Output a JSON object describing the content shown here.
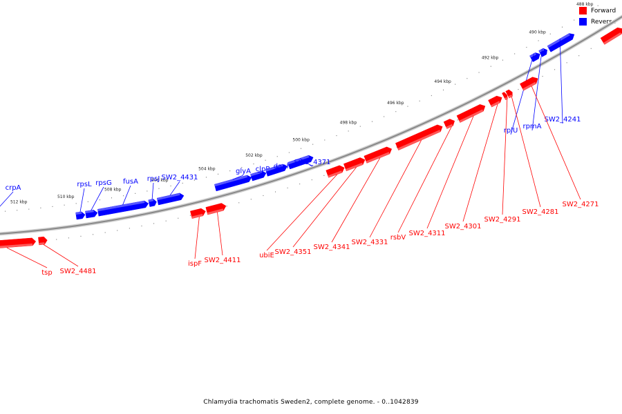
{
  "legend": {
    "forward_label": "Forward",
    "reverse_label": "Reverse",
    "forward_color": "#ff0000",
    "reverse_color": "#0000ff"
  },
  "footer": {
    "caption": "Chlamydia trachomatis Sweden2, complete genome. - 0..1042839"
  },
  "colors": {
    "forward": "#ff0000",
    "reverse": "#0000ff",
    "backbone": "#888888"
  },
  "axis": {
    "unit": "kbp",
    "range_kbp": [
      486.6,
      513.8
    ],
    "ticks": [
      {
        "kbp": 512,
        "label": "512 kbp"
      },
      {
        "kbp": 510,
        "label": "510 kbp"
      },
      {
        "kbp": 508,
        "label": "508 kbp"
      },
      {
        "kbp": 506,
        "label": "506 kbp"
      },
      {
        "kbp": 504,
        "label": "504 kbp"
      },
      {
        "kbp": 502,
        "label": "502 kbp"
      },
      {
        "kbp": 500,
        "label": "500 kbp"
      },
      {
        "kbp": 498,
        "label": "498 kbp"
      },
      {
        "kbp": 496,
        "label": "496 kbp"
      },
      {
        "kbp": 494,
        "label": "494 kbp"
      },
      {
        "kbp": 492,
        "label": "492 kbp"
      },
      {
        "kbp": 490,
        "label": "490 kbp"
      },
      {
        "kbp": 488,
        "label": "488 kbp"
      }
    ]
  },
  "genes": {
    "reverse": [
      {
        "start": 513.67,
        "end": 513.2,
        "label": "crpA"
      },
      {
        "start": 509.67,
        "end": 509.3,
        "label": "rpsL"
      },
      {
        "start": 509.27,
        "end": 508.78,
        "label": "rpsG"
      },
      {
        "start": 508.75,
        "end": 506.65,
        "label": "fusA"
      },
      {
        "start": 506.62,
        "end": 506.31,
        "label": "rpsJ"
      },
      {
        "start": 506.26,
        "end": 505.17,
        "label": "SW2_4431"
      },
      {
        "start": 503.85,
        "end": 502.34,
        "label": "glyA"
      },
      {
        "start": 502.34,
        "end": 501.73,
        "label": "clpP"
      },
      {
        "start": 501.71,
        "end": 500.85,
        "label": "dapF"
      },
      {
        "start": 500.78,
        "end": 499.76,
        "label": "SW2_4371"
      },
      {
        "start": 490.65,
        "end": 490.29,
        "label": "rplU"
      },
      {
        "start": 490.27,
        "end": 489.99,
        "label": "rpmA"
      },
      {
        "start": 489.91,
        "end": 488.86,
        "label": "SW2_4241"
      }
    ],
    "forward": [
      {
        "start": 513.84,
        "end": 511.45,
        "label": "tsp"
      },
      {
        "start": 511.33,
        "end": 510.98,
        "label": "SW2_4481"
      },
      {
        "start": 505.06,
        "end": 504.47,
        "label": "ispF"
      },
      {
        "start": 504.42,
        "end": 503.63,
        "label": "SW2_4411"
      },
      {
        "start": 499.46,
        "end": 498.76,
        "label": "ubiE"
      },
      {
        "start": 498.73,
        "end": 497.91,
        "label": "SW2_4351"
      },
      {
        "start": 497.89,
        "end": 496.81,
        "label": "SW2_4341"
      },
      {
        "start": 496.59,
        "end": 494.72,
        "label": "SW2_4331"
      },
      {
        "start": 494.6,
        "end": 494.22,
        "label": "rsbV"
      },
      {
        "start": 494.06,
        "end": 492.96,
        "label": "SW2_4311"
      },
      {
        "start": 492.76,
        "end": 492.27,
        "label": "SW2_4301"
      },
      {
        "start": 492.19,
        "end": 492.06,
        "label": "SW2_4291"
      },
      {
        "start": 492.04,
        "end": 491.84,
        "label": "SW2_4281"
      },
      {
        "start": 491.45,
        "end": 490.79,
        "label": "SW2_4271"
      },
      {
        "start": 488.12,
        "end": 487.28,
        "label": ""
      },
      {
        "start": 487.22,
        "end": 486.58,
        "label": ""
      }
    ]
  }
}
